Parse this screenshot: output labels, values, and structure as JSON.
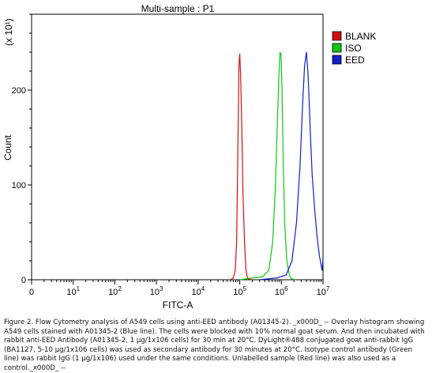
{
  "chart_data": {
    "type": "line",
    "title": "Multi-sample : P1",
    "xlabel": "FITC-A",
    "ylabel": "Count",
    "y_scale_note": "(x 10¹)",
    "x_scale": "log",
    "xlim": [
      1,
      10000000
    ],
    "ylim": [
      0,
      280
    ],
    "x_ticks": [
      {
        "value": 1,
        "base": "0",
        "exp": ""
      },
      {
        "value": 10,
        "base": "10",
        "exp": "1"
      },
      {
        "value": 100,
        "base": "10",
        "exp": "2"
      },
      {
        "value": 1000,
        "base": "10",
        "exp": "3"
      },
      {
        "value": 10000,
        "base": "10",
        "exp": "4"
      },
      {
        "value": 100000,
        "base": "10",
        "exp": "5"
      },
      {
        "value": 1000000,
        "base": "10",
        "exp": "6"
      },
      {
        "value": 10000000,
        "base": "10",
        "exp": "7"
      }
    ],
    "y_ticks": [
      0,
      100,
      200
    ],
    "legend_position": "top-right",
    "series": [
      {
        "name": "BLANK",
        "color": "#d01010",
        "x": [
          60000,
          70000,
          78000,
          84000,
          88000,
          92000,
          96000,
          100000,
          105000,
          112000,
          120000,
          130000,
          140000,
          150000,
          160000,
          200000
        ],
        "y": [
          0,
          2,
          10,
          40,
          100,
          170,
          228,
          238,
          215,
          160,
          90,
          40,
          12,
          3,
          1,
          0
        ]
      },
      {
        "name": "ISO",
        "color": "#10c810",
        "x": [
          100000,
          200000,
          350000,
          500000,
          620000,
          720000,
          800000,
          870000,
          930000,
          980000,
          1030000,
          1100000,
          1200000,
          1350000,
          1550000,
          1750000,
          2200000
        ],
        "y": [
          0,
          2,
          3,
          10,
          40,
          100,
          165,
          215,
          240,
          238,
          205,
          130,
          60,
          20,
          5,
          1,
          0
        ]
      },
      {
        "name": "EED",
        "color": "#1020c8",
        "x": [
          300000,
          800000,
          1300000,
          1800000,
          2300000,
          2800000,
          3200000,
          3600000,
          4000000,
          4400000,
          4900000,
          5500000,
          6300000,
          7200000,
          8200000,
          9500000,
          10000000
        ],
        "y": [
          0,
          2,
          5,
          20,
          60,
          120,
          180,
          225,
          240,
          215,
          160,
          110,
          75,
          45,
          25,
          10,
          22
        ]
      }
    ]
  },
  "caption": "Figure 2. Flow Cytometry analysis of A549 cells using anti-EED antibody (A01345-2). _x000D_ -- Overlay histogram showing A549 cells stained with A01345-2 (Blue line). The cells were blocked with 10% normal goat serum. And then incubated with rabbit anti-EED Antibody (A01345-2, 1 µg/1x106 cells) for 30 min at 20°C. DyLight®488 conjugated goat anti-rabbit IgG (BA1127, 5-10 µg/1x106 cells) was used as secondary antibody for 30 minutes at 20°C. Isotype control antibody (Green line) was rabbit IgG (1 µg/1x106) used under the same conditions. Unlabelled sample (Red line) was also used as a control._x000D_ --"
}
